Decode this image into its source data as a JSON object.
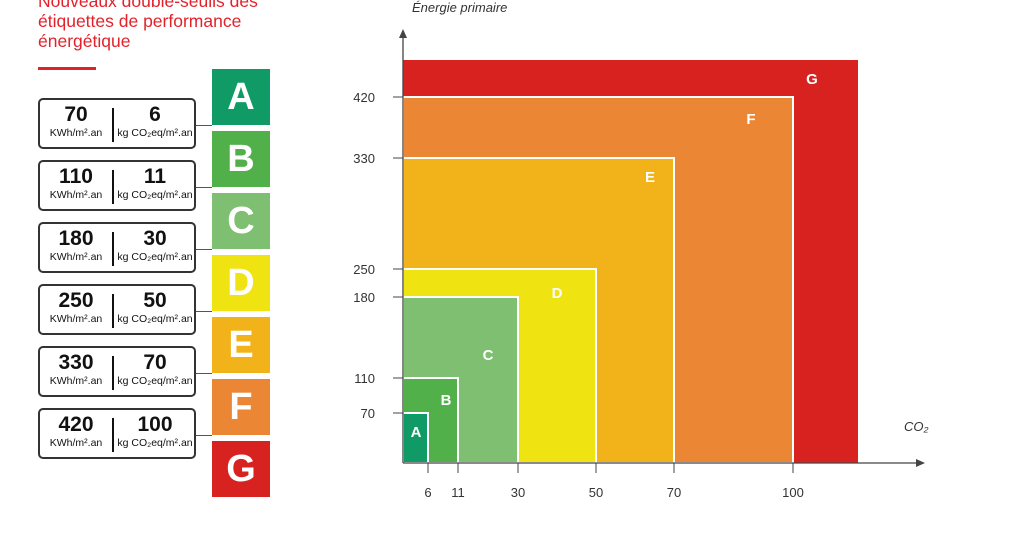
{
  "title": "Nouveaux double-seuils des étiquettes de performance énergétique",
  "labels": [
    {
      "letter": "A",
      "color": "#0f9a66"
    },
    {
      "letter": "B",
      "color": "#52b04a"
    },
    {
      "letter": "C",
      "color": "#7fbf72"
    },
    {
      "letter": "D",
      "color": "#f0e312"
    },
    {
      "letter": "E",
      "color": "#f2b21a"
    },
    {
      "letter": "F",
      "color": "#ea8634"
    },
    {
      "letter": "G",
      "color": "#d8221f"
    }
  ],
  "thresholds": [
    {
      "energy": "70",
      "energy_unit": "KWh/m².an",
      "co2": "6",
      "co2_unit": "kg CO₂eq/m².an"
    },
    {
      "energy": "110",
      "energy_unit": "KWh/m².an",
      "co2": "11",
      "co2_unit": "kg CO₂eq/m².an"
    },
    {
      "energy": "180",
      "energy_unit": "KWh/m².an",
      "co2": "30",
      "co2_unit": "kg CO₂eq/m².an"
    },
    {
      "energy": "250",
      "energy_unit": "KWh/m².an",
      "co2": "50",
      "co2_unit": "kg CO₂eq/m².an"
    },
    {
      "energy": "330",
      "energy_unit": "KWh/m².an",
      "co2": "70",
      "co2_unit": "kg CO₂eq/m².an"
    },
    {
      "energy": "420",
      "energy_unit": "KWh/m².an",
      "co2": "100",
      "co2_unit": "kg CO₂eq/m².an"
    }
  ],
  "chart_data": {
    "type": "area",
    "ylabel": "Énergie primaire",
    "xlabel": "CO₂",
    "x_ticks": [
      6,
      11,
      30,
      50,
      70,
      100
    ],
    "y_ticks": [
      70,
      110,
      180,
      250,
      330,
      420
    ],
    "x_tick_labels": [
      "6",
      "11",
      "30",
      "50",
      "70",
      "100"
    ],
    "y_tick_labels": [
      "70",
      "110",
      "180",
      "250",
      "330",
      "420"
    ],
    "zones": [
      {
        "label": "G",
        "co2_max": null,
        "energy_max": null,
        "color": "#d8221f"
      },
      {
        "label": "F",
        "co2_max": 100,
        "energy_max": 420,
        "color": "#ea8634"
      },
      {
        "label": "E",
        "co2_max": 70,
        "energy_max": 330,
        "color": "#f2b21a"
      },
      {
        "label": "D",
        "co2_max": 50,
        "energy_max": 250,
        "color": "#f0e312"
      },
      {
        "label": "C",
        "co2_max": 30,
        "energy_max": 180,
        "color": "#7fbf72"
      },
      {
        "label": "B",
        "co2_max": 11,
        "energy_max": 110,
        "color": "#52b04a"
      },
      {
        "label": "A",
        "co2_max": 6,
        "energy_max": 70,
        "color": "#0f9a66"
      }
    ]
  }
}
